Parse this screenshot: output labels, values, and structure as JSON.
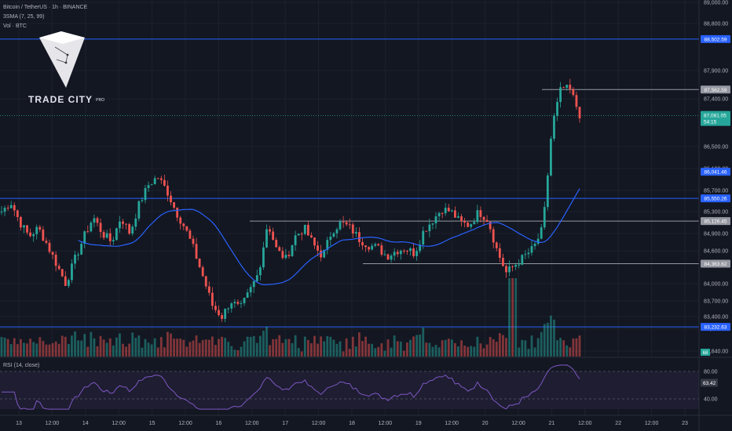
{
  "header": {
    "symbol_line": "Bitcoin / TetherUS · 1h · BINANCE",
    "sma_line": "3SMA (7, 25, 99)",
    "vol_line": "Vol · BTC"
  },
  "brand": {
    "name": "TRADE CITY",
    "suffix": "PRO",
    "logo_icon": "diamond-logo-icon"
  },
  "rsi": {
    "label": "RSI (14, close)",
    "value_label": "63.42",
    "ticks": [
      "80.00",
      "40.00"
    ],
    "value": 63.42
  },
  "colors": {
    "background": "#131722",
    "up": "#26a69a",
    "down": "#ef5350",
    "level_blue": "#2962ff",
    "level_gray": "#9598a1",
    "sma": "#2962ff",
    "rsi_line": "#7e57c2"
  },
  "chart_data": {
    "type": "candlestick",
    "symbol": "BTCUSDT",
    "timeframe": "1h",
    "x_ticks": [
      "13",
      "12:00",
      "14",
      "12:00",
      "15",
      "12:00",
      "16",
      "12:00",
      "17",
      "12:00",
      "18",
      "12:00",
      "19",
      "12:00",
      "20",
      "12:00",
      "21",
      "12:00",
      "22",
      "12:00",
      "23"
    ],
    "price_ticks": [
      "89,000.00",
      "88,800.00",
      "87,900.00",
      "87,400.00",
      "86,500.00",
      "86,100.00",
      "85,700.00",
      "85,300.00",
      "84,900.00",
      "84,600.00",
      "84,000.00",
      "83,700.00",
      "83,400.00",
      "83,200.00",
      "82,840.00"
    ],
    "levels": [
      {
        "label": "88,502.59",
        "price": 88502.59,
        "color": "blue",
        "style": "full"
      },
      {
        "label": "87,562.59",
        "price": 87562.59,
        "color": "gray",
        "style": "from-right"
      },
      {
        "label": "86,041.46",
        "price": 86041.46,
        "color": "blue",
        "style": "tag-only"
      },
      {
        "label": "85,550.26",
        "price": 85550.26,
        "color": "blue",
        "style": "full"
      },
      {
        "label": "85,126.45",
        "price": 85126.45,
        "color": "gray",
        "style": "from-17th"
      },
      {
        "label": "84,363.62",
        "price": 84363.62,
        "color": "gray",
        "style": "from-18th"
      },
      {
        "label": "83,232.63",
        "price": 83232.63,
        "color": "blue",
        "style": "full"
      }
    ],
    "last_price": {
      "label": "87,081.05",
      "countdown": "54:15",
      "price": 87081.05
    },
    "volume_badge": "68",
    "ohlc_keyframes": [
      85300,
      85480,
      85100,
      84850,
      85000,
      84700,
      84350,
      84000,
      84450,
      84850,
      85200,
      84900,
      84750,
      85200,
      84900,
      85450,
      85800,
      85950,
      85700,
      85300,
      85000,
      84600,
      84100,
      83600,
      83400,
      83700,
      83550,
      83850,
      84200,
      85100,
      84600,
      84450,
      84850,
      85000,
      84700,
      84500,
      84950,
      85100,
      85000,
      84800,
      84700,
      84650,
      84500,
      84600,
      84650,
      84550,
      84950,
      85150,
      85350,
      85300,
      85100,
      85050,
      85300,
      85150,
      84600,
      84200,
      84350,
      84500,
      84650,
      85000,
      86900,
      87600,
      87550,
      87100
    ]
  }
}
